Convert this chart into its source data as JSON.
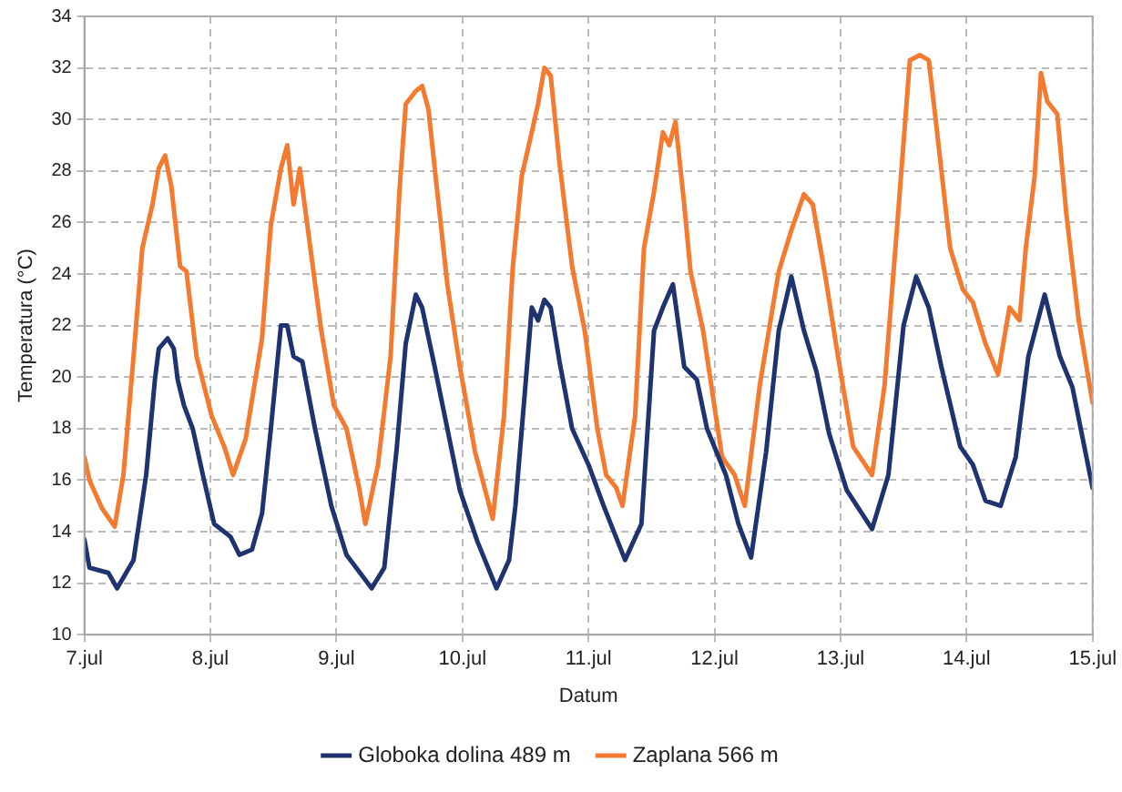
{
  "chart_data": {
    "type": "line",
    "xlabel": "Datum",
    "ylabel": "Temperatura (°C)",
    "xlim": [
      "--07-07",
      "--07-15"
    ],
    "xticks": [
      {
        "value": "--07-07",
        "label": "7.jul"
      },
      {
        "value": "--07-08",
        "label": "8.jul"
      },
      {
        "value": "--07-09",
        "label": "9.jul"
      },
      {
        "value": "--07-10",
        "label": "10.jul"
      },
      {
        "value": "--07-11",
        "label": "11.jul"
      },
      {
        "value": "--07-12",
        "label": "12.jul"
      },
      {
        "value": "--07-13",
        "label": "13.jul"
      },
      {
        "value": "--07-14",
        "label": "14.jul"
      },
      {
        "value": "--07-15",
        "label": "15.jul"
      }
    ],
    "ylim": [
      10,
      34
    ],
    "yticks": [
      10,
      12,
      14,
      16,
      18,
      20,
      22,
      24,
      26,
      28,
      30,
      32,
      34
    ],
    "grid": true,
    "legend": "bottom",
    "marker": "none",
    "line_style": "solid",
    "series": [
      {
        "name": "Globoka dolina 489 m",
        "color": "#1f3370",
        "x": [
          "--07-07T00:00",
          "--07-07T00:58",
          "--07-07T04:34",
          "--07-07T06:14",
          "--07-07T09:22",
          "--07-07T11:46",
          "--07-07T13:26",
          "--07-07T14:10",
          "--07-07T15:50",
          "--07-07T17:02",
          "--07-07T17:46",
          "--07-07T18:58",
          "--07-07T20:38",
          "--07-07T22:34",
          "--07-08T00:43",
          "--07-08T03:50",
          "--07-08T05:31",
          "--07-08T07:55",
          "--07-08T09:50",
          "--07-08T11:31",
          "--07-08T13:26",
          "--07-08T14:38",
          "--07-08T15:50",
          "--07-08T17:31",
          "--07-08T19:55",
          "--07-08T23:02",
          "--07-09T01:55",
          "--07-09T06:43",
          "--07-09T09:07",
          "--07-09T11:31",
          "--07-09T13:12",
          "--07-09T15:07",
          "--07-09T16:19",
          "--07-09T18:43",
          "--07-09T21:07",
          "--07-09T23:31",
          "--07-10T02:53",
          "--07-10T06:29",
          "--07-10T08:53",
          "--07-10T10:05",
          "--07-10T12:00",
          "--07-10T13:12",
          "--07-10T14:24",
          "--07-10T15:36",
          "--07-10T16:48",
          "--07-10T18:29",
          "--07-10T20:53",
          "--07-11T00:00",
          "--07-11T02:53",
          "--07-11T06:58",
          "--07-11T10:05",
          "--07-11T12:29",
          "--07-11T14:10",
          "--07-11T16:05",
          "--07-11T18:14",
          "--07-11T20:38",
          "--07-11T22:34",
          "--07-12T02:10",
          "--07-12T04:34",
          "--07-12T06:58",
          "--07-12T09:50",
          "--07-12T12:14",
          "--07-12T14:38",
          "--07-12T17:02",
          "--07-12T19:26",
          "--07-12T21:50",
          "--07-13T01:12",
          "--07-13T06:00",
          "--07-13T09:07",
          "--07-13T12:00",
          "--07-13T14:24",
          "--07-13T16:48",
          "--07-13T19:12",
          "--07-13T22:48",
          "--07-14T01:12",
          "--07-14T03:36",
          "--07-14T06:29",
          "--07-14T09:22",
          "--07-14T11:46",
          "--07-14T14:53",
          "--07-14T16:34",
          "--07-14T17:46",
          "--07-14T20:10",
          "--07-15T00:00"
        ],
        "values": [
          13.7,
          12.6,
          12.4,
          11.8,
          12.9,
          16.2,
          19.9,
          21.1,
          21.5,
          21.1,
          19.9,
          18.9,
          18.0,
          16.2,
          14.3,
          13.8,
          13.1,
          13.3,
          14.7,
          18.0,
          22.0,
          22.0,
          20.8,
          20.6,
          18.0,
          15.0,
          13.1,
          11.8,
          12.6,
          17.3,
          21.3,
          23.2,
          22.7,
          20.4,
          18.0,
          15.6,
          13.6,
          11.8,
          12.9,
          15.0,
          19.7,
          22.7,
          22.2,
          23.0,
          22.7,
          20.6,
          18.0,
          16.6,
          15.0,
          12.9,
          14.3,
          21.8,
          22.7,
          23.6,
          20.4,
          19.9,
          18.0,
          16.2,
          14.3,
          13.0,
          17.1,
          21.8,
          23.9,
          21.8,
          20.2,
          17.8,
          15.6,
          14.1,
          16.2,
          22.0,
          23.9,
          22.7,
          20.4,
          17.3,
          16.6,
          15.2,
          15.0,
          16.9,
          20.8,
          23.2,
          21.8,
          20.8,
          19.6,
          15.7
        ]
      },
      {
        "name": "Zaplana 566 m",
        "color": "#f47a30",
        "x": [
          "--07-07T00:00",
          "--07-07T00:58",
          "--07-07T03:22",
          "--07-07T05:46",
          "--07-07T07:26",
          "--07-07T09:22",
          "--07-07T11:02",
          "--07-07T12:58",
          "--07-07T14:10",
          "--07-07T15:22",
          "--07-07T16:34",
          "--07-07T18:14",
          "--07-07T19:26",
          "--07-07T21:22",
          "--07-08T00:14",
          "--07-08T02:38",
          "--07-08T04:19",
          "--07-08T06:43",
          "--07-08T09:50",
          "--07-08T11:31",
          "--07-08T13:26",
          "--07-08T14:38",
          "--07-08T15:50",
          "--07-08T17:02",
          "--07-08T18:43",
          "--07-08T21:07",
          "--07-08T23:31",
          "--07-09T01:55",
          "--07-09T04:19",
          "--07-09T05:31",
          "--07-09T07:55",
          "--07-09T10:19",
          "--07-09T12:00",
          "--07-09T13:12",
          "--07-09T15:07",
          "--07-09T16:19",
          "--07-09T17:31",
          "--07-09T19:12",
          "--07-09T21:07",
          "--07-09T23:31",
          "--07-10T02:24",
          "--07-10T05:46",
          "--07-10T07:55",
          "--07-10T09:36",
          "--07-10T11:17",
          "--07-10T13:12",
          "--07-10T14:24",
          "--07-10T15:36",
          "--07-10T16:48",
          "--07-10T18:29",
          "--07-10T20:53",
          "--07-10T23:17",
          "--07-11T01:41",
          "--07-11T03:22",
          "--07-11T05:17",
          "--07-11T06:29",
          "--07-11T08:53",
          "--07-11T10:34",
          "--07-11T12:29",
          "--07-11T14:10",
          "--07-11T15:22",
          "--07-11T16:34",
          "--07-11T18:14",
          "--07-11T19:26",
          "--07-11T21:50",
          "--07-12T01:26",
          "--07-12T03:50",
          "--07-12T05:46",
          "--07-12T08:38",
          "--07-12T12:14",
          "--07-12T14:38",
          "--07-12T17:02",
          "--07-12T18:43",
          "--07-12T21:07",
          "--07-12T23:31",
          "--07-13T02:24",
          "--07-13T06:00",
          "--07-13T08:24",
          "--07-13T10:48",
          "--07-13T13:12",
          "--07-13T15:07",
          "--07-13T16:48",
          "--07-13T18:00",
          "--07-13T20:53",
          "--07-13T23:17",
          "--07-14T01:12",
          "--07-14T03:36",
          "--07-14T06:00",
          "--07-14T08:10",
          "--07-14T10:05",
          "--07-14T11:17",
          "--07-14T12:58",
          "--07-14T14:10",
          "--07-14T15:22",
          "--07-14T17:17",
          "--07-14T18:58",
          "--07-14T21:22",
          "--07-15T00:00"
        ],
        "values": [
          16.9,
          16.0,
          14.9,
          14.2,
          16.2,
          20.8,
          25.0,
          26.7,
          28.1,
          28.6,
          27.4,
          24.3,
          24.1,
          20.8,
          18.5,
          17.3,
          16.2,
          17.6,
          21.5,
          25.9,
          28.1,
          29.0,
          26.7,
          28.1,
          25.5,
          21.8,
          18.9,
          18.0,
          15.7,
          14.3,
          16.6,
          20.8,
          27.2,
          30.6,
          31.1,
          31.3,
          30.4,
          27.2,
          23.6,
          20.4,
          17.1,
          14.5,
          18.5,
          24.3,
          27.8,
          29.5,
          30.6,
          32.0,
          31.7,
          28.3,
          24.3,
          21.8,
          18.0,
          16.2,
          15.7,
          15.0,
          18.5,
          25.0,
          27.2,
          29.5,
          29.0,
          29.9,
          26.7,
          24.1,
          21.8,
          16.9,
          16.2,
          15.0,
          19.7,
          24.1,
          25.7,
          27.1,
          26.7,
          23.9,
          20.8,
          17.3,
          16.2,
          19.7,
          25.9,
          32.3,
          32.5,
          32.3,
          30.2,
          25.0,
          23.4,
          22.9,
          21.3,
          20.1,
          22.7,
          22.2,
          25.0,
          27.8,
          31.8,
          30.7,
          30.2,
          26.4,
          22.2,
          19.0
        ]
      }
    ]
  }
}
